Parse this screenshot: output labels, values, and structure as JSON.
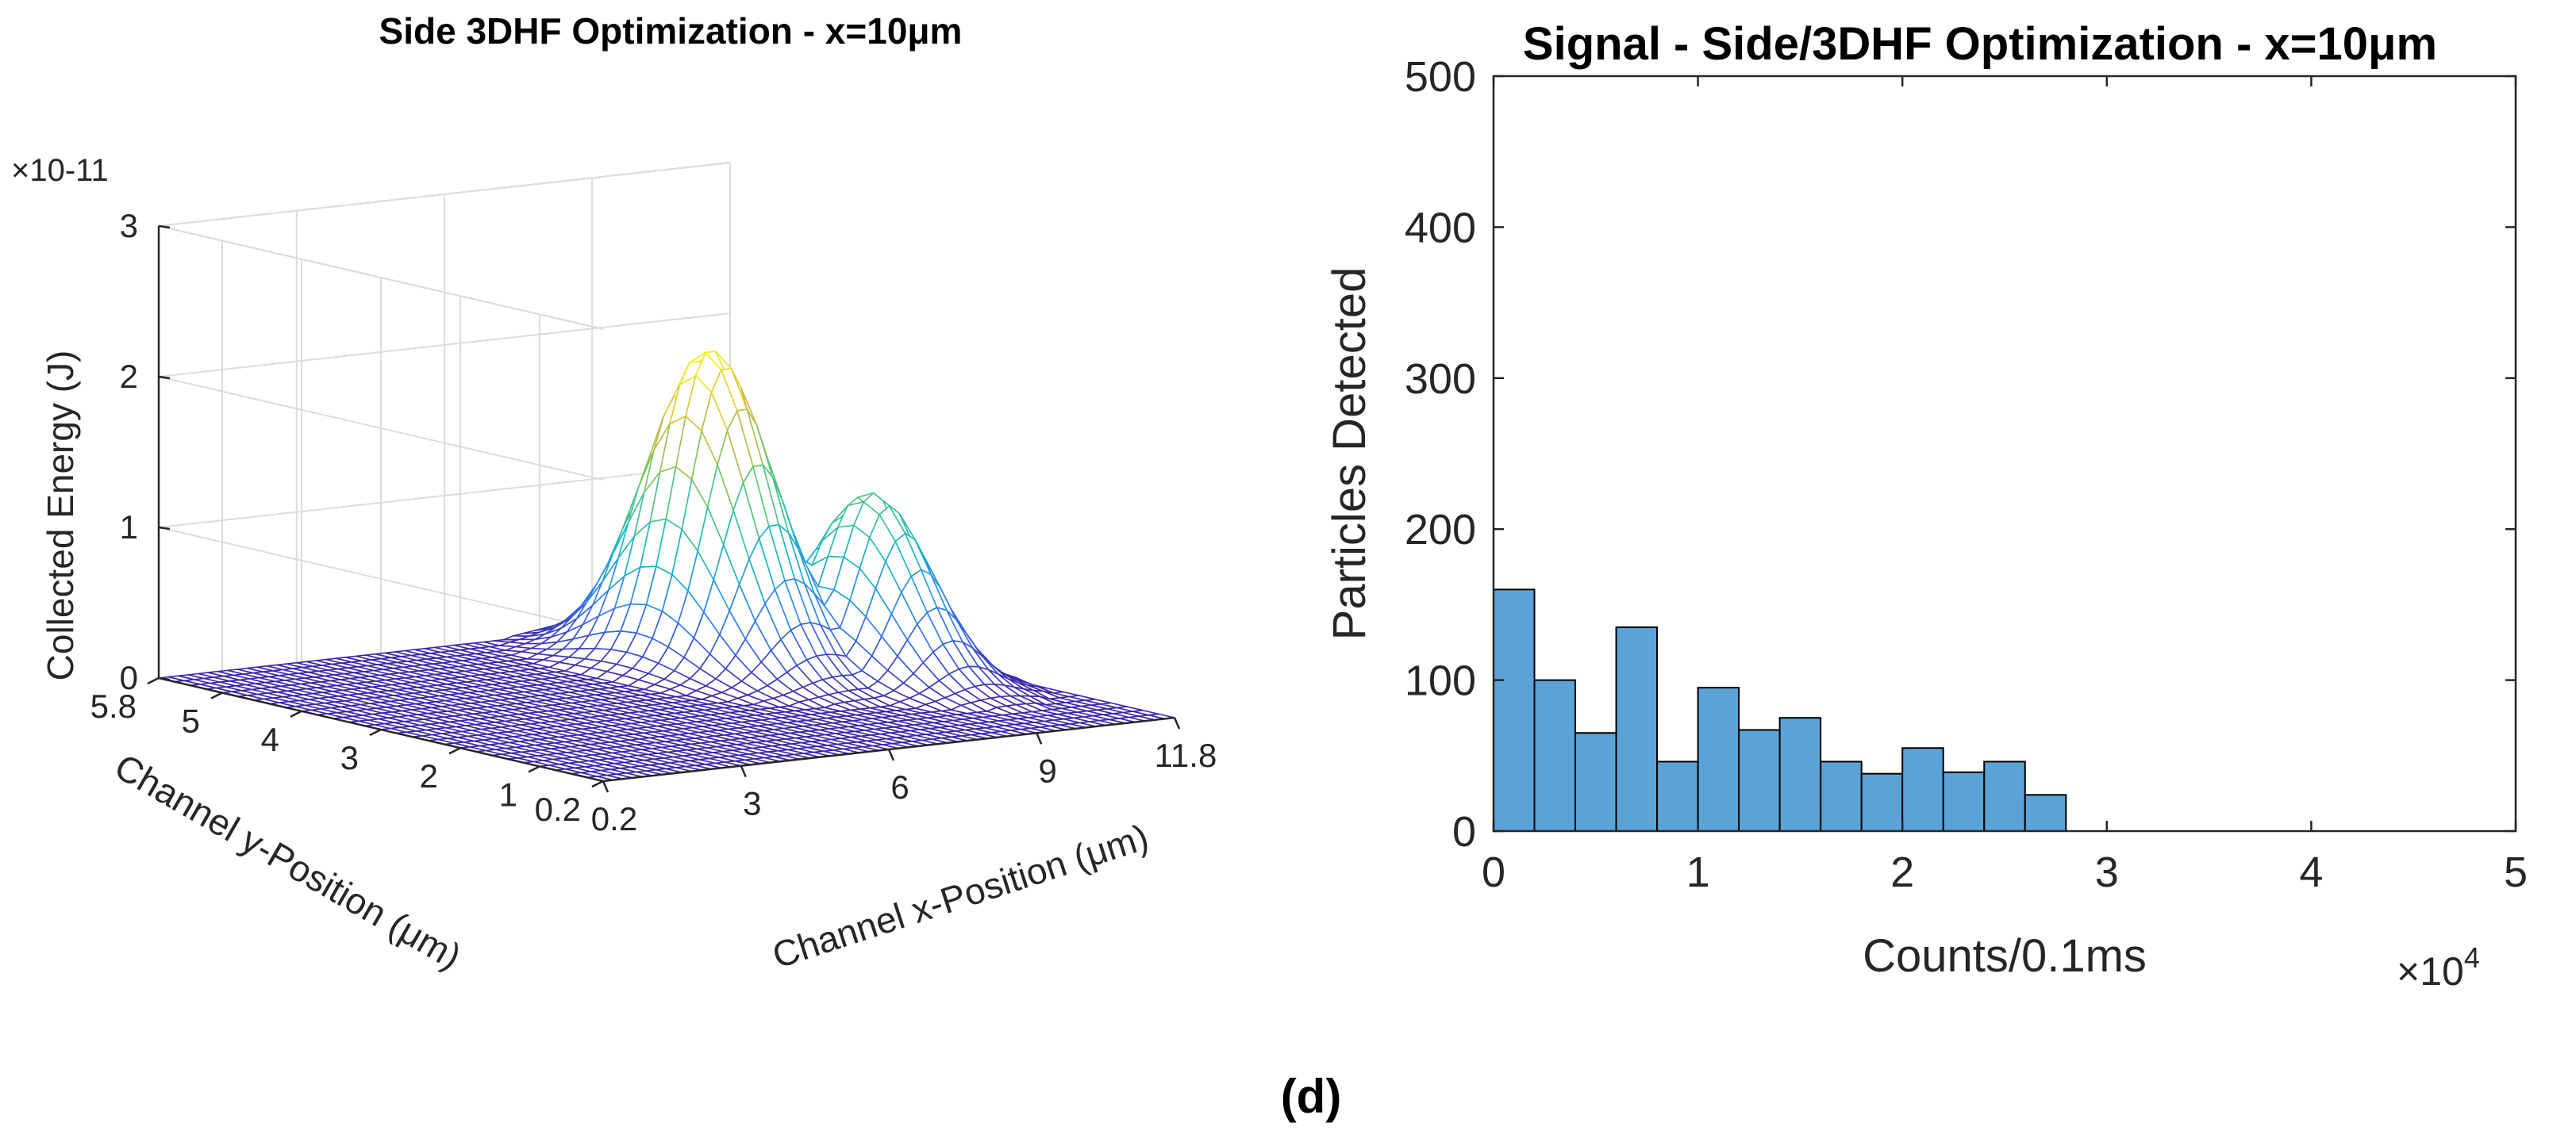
{
  "panel_label": "(d)",
  "chart_data": [
    {
      "type": "surface",
      "title": "Side 3DHF Optimization - x=10μm",
      "xlabel": "Channel x-Position (μm)",
      "ylabel": "Channel y-Position (μm)",
      "zlabel": "Collected Energy (J)",
      "z_exponent": "×10-11",
      "x_ticks": [
        "0.2",
        "3",
        "6",
        "9",
        "11.8"
      ],
      "y_ticks": [
        "0.2",
        "1",
        "2",
        "3",
        "4",
        "5",
        "5.8"
      ],
      "z_ticks": [
        "0",
        "1",
        "2",
        "3"
      ],
      "xlim": [
        0.2,
        11.8
      ],
      "ylim": [
        0.2,
        5.8
      ],
      "zlim": [
        0,
        3
      ],
      "grid": true,
      "colormap": [
        "#3e26a8",
        "#2f77f4",
        "#16b8c6",
        "#5ccb68",
        "#d8b83b",
        "#f9fb15"
      ],
      "peak": {
        "x": 8.5,
        "y": 4.0,
        "z": 2.1
      },
      "secondary_peak": {
        "x": 10.2,
        "y": 3.0,
        "z": 1.2
      }
    },
    {
      "type": "histogram",
      "title": "Signal - Side/3DHF Optimization - x=10μm",
      "xlabel": "Counts/0.1ms",
      "ylabel": "Particles Detected",
      "x_exponent": "×10",
      "x_exponent_power": "4",
      "x_ticks": [
        "0",
        "1",
        "2",
        "3",
        "4",
        "5"
      ],
      "y_ticks": [
        "0",
        "100",
        "200",
        "300",
        "400",
        "500"
      ],
      "xlim": [
        0,
        5
      ],
      "ylim": [
        0,
        500
      ],
      "bin_width": 0.2,
      "bin_edges": [
        0,
        0.2,
        0.4,
        0.6,
        0.8,
        1.0,
        1.2,
        1.4,
        1.6,
        1.8,
        2.0,
        2.2,
        2.4,
        2.6,
        2.8
      ],
      "values": [
        160,
        100,
        65,
        135,
        46,
        95,
        67,
        75,
        46,
        38,
        55,
        39,
        46,
        24
      ],
      "bar_color": "#5ba3d6",
      "edge_color": "#000000"
    }
  ]
}
